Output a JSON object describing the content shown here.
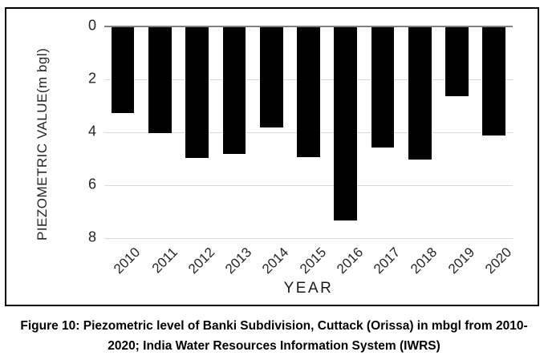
{
  "chart_data": {
    "type": "bar",
    "title": "",
    "xlabel": "YEAR",
    "ylabel": "PIEZOMETRIC VALUE(m bgl)",
    "categories": [
      "2010",
      "2011",
      "2012",
      "2013",
      "2014",
      "2015",
      "2016",
      "2017",
      "2018",
      "2019",
      "2020"
    ],
    "values": [
      3.25,
      4.0,
      4.95,
      4.8,
      3.8,
      4.9,
      7.3,
      4.55,
      5.0,
      2.6,
      4.1
    ],
    "y_ticks": [
      0,
      2,
      4,
      6,
      8
    ],
    "ylim": [
      0,
      8
    ],
    "bars_hang_down_from_zero": true,
    "grid": true,
    "legend_position": "none",
    "bar_color": "#000000",
    "gridline_color": "#d9d9d9",
    "zero_axis_color": "#808080"
  },
  "caption": {
    "line1": "Figure 10: Piezometric level of Banki Subdivision, Cuttack (Orissa) in mbgl from 2010-",
    "line2": "2020; India Water Resources Information System (IWRS)"
  }
}
